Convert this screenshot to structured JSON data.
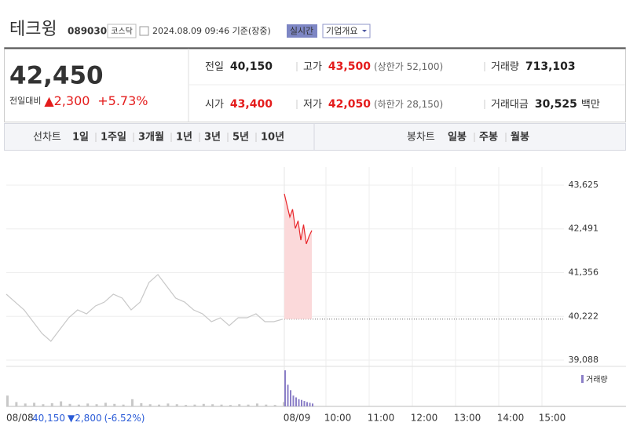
{
  "header": {
    "name": "테크윙",
    "code": "089030",
    "market": "코스닥",
    "timestamp": "2024.08.09 09:46 기준(장중)",
    "realtime": "실시간",
    "company_info": "기업개요"
  },
  "price": {
    "current": "42,450",
    "change_label": "전일대비",
    "change": "▲2,300",
    "change_pct": "+5.73%",
    "color": "#e41c1c"
  },
  "stats": [
    {
      "label": "전일",
      "value": "40,150",
      "color": "#222"
    },
    {
      "label": "고가",
      "value": "43,500",
      "note": "(상한가 52,100)",
      "color": "#e41c1c"
    },
    {
      "label": "거래량",
      "value": "713,103",
      "color": "#222"
    },
    {
      "label": "시가",
      "value": "43,400",
      "color": "#e41c1c"
    },
    {
      "label": "저가",
      "value": "42,050",
      "note": "(하한가 28,150)",
      "color": "#e41c1c"
    },
    {
      "label": "거래대금",
      "value": "30,525",
      "unit": "백만",
      "color": "#222"
    }
  ],
  "tabs": {
    "line": {
      "label": "선차트",
      "items": [
        "1일",
        "1주일",
        "3개월",
        "1년",
        "3년",
        "5년",
        "10년"
      ],
      "selected": 0
    },
    "candle": {
      "label": "봉차트",
      "items": [
        "일봉",
        "주봉",
        "월봉"
      ]
    }
  },
  "chart_data": {
    "type": "line",
    "ylim": [
      38925,
      44093
    ],
    "yticks": [
      {
        "value": 43625,
        "label": "43,625"
      },
      {
        "value": 42491,
        "label": "42,491"
      },
      {
        "value": 41356,
        "label": "41,356"
      },
      {
        "value": 40222,
        "label": "40,222"
      },
      {
        "value": 39088,
        "label": "39,088"
      }
    ],
    "x_labels": [
      "08/08",
      "08/09",
      "10:00",
      "11:00",
      "12:00",
      "13:00",
      "14:00",
      "15:00"
    ],
    "prev_close": 40150,
    "series": [
      {
        "color": "#c8c8c8",
        "values": [
          40797,
          40593,
          40390,
          40085,
          39780,
          39576,
          39881,
          40186,
          40390,
          40288,
          40492,
          40593,
          40797,
          40695,
          40390,
          40593,
          41102,
          41306,
          41000,
          40695,
          40593,
          40390,
          40288,
          40085,
          40186,
          39983,
          40186,
          40186,
          40288,
          40085,
          40085,
          40150
        ]
      },
      {
        "color": "#e8262a",
        "fill": "#fbd9da",
        "values": [
          43400,
          43100,
          42800,
          43000,
          42500,
          42700,
          42200,
          42600,
          42100,
          42300,
          42450
        ]
      }
    ],
    "volume_label": "거래량",
    "volume": [
      {
        "color": "#c8c8c8",
        "values": [
          30,
          12,
          8,
          10,
          6,
          9,
          14,
          7,
          5,
          8,
          6,
          10,
          7,
          5,
          20,
          9,
          6,
          5,
          8,
          6,
          4,
          5,
          7,
          6,
          5,
          4,
          6,
          5,
          8,
          5,
          4,
          12
        ]
      },
      {
        "color": "#8b7fc7",
        "values": [
          100,
          60,
          45,
          30,
          25,
          20,
          18,
          15,
          12,
          10,
          8
        ]
      }
    ],
    "footer": {
      "close": "40,150",
      "change": "▼2,800",
      "pct": "(-6.52%)",
      "color": "#2a5bd7"
    }
  }
}
